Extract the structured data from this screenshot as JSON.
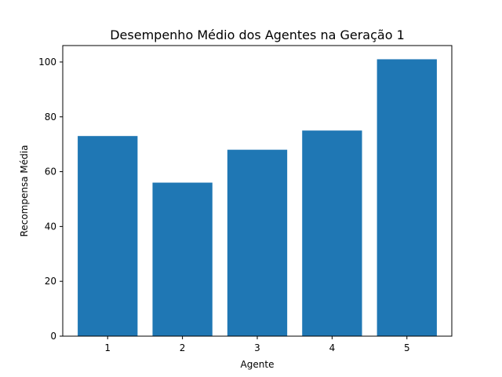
{
  "chart_data": {
    "type": "bar",
    "title": "Desempenho Médio dos Agentes na Geração 1",
    "xlabel": "Agente",
    "ylabel": "Recompensa Média",
    "categories": [
      "1",
      "2",
      "3",
      "4",
      "5"
    ],
    "values": [
      73,
      56,
      68,
      75,
      101
    ],
    "ylim": [
      0,
      106
    ],
    "yticks": [
      0,
      20,
      40,
      60,
      80,
      100
    ],
    "bar_color": "#1f77b4",
    "grid": false,
    "legend": "none"
  }
}
